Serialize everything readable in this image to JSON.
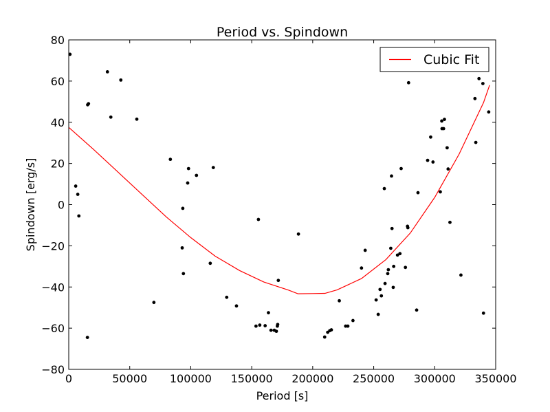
{
  "chart_data": {
    "type": "scatter",
    "title": "Period vs. Spindown",
    "xlabel": "Period [s]",
    "ylabel": "Spindown [erg/s]",
    "xlim": [
      0,
      350000
    ],
    "ylim": [
      -80,
      80
    ],
    "xticks": [
      0,
      50000,
      100000,
      150000,
      200000,
      250000,
      300000,
      350000
    ],
    "yticks": [
      -80,
      -60,
      -40,
      -20,
      0,
      20,
      40,
      60,
      80
    ],
    "xtick_labels": [
      "0",
      "50000",
      "100000",
      "150000",
      "200000",
      "250000",
      "300000",
      "350000"
    ],
    "ytick_labels": [
      "−80",
      "−60",
      "−40",
      "−20",
      "0",
      "20",
      "40",
      "60",
      "80"
    ],
    "legend": {
      "position": "top-right",
      "entries": [
        "Cubic Fit"
      ]
    },
    "colors": {
      "points": "#000000",
      "fit": "#ff0000"
    },
    "series": [
      {
        "kind": "points",
        "x": [
          1000,
          5700,
          7400,
          8300,
          15300,
          15500,
          16200,
          31700,
          34500,
          42700,
          55800,
          69800,
          83300,
          93000,
          93500,
          94000,
          97500,
          98200,
          104700,
          116000,
          118500,
          129500,
          137500,
          153500,
          155500,
          156600,
          161000,
          163700,
          165800,
          168500,
          170200,
          171000,
          171300,
          171800,
          188300,
          209800,
          212300,
          214000,
          215300,
          221800,
          227000,
          228800,
          233000,
          240000,
          243000,
          252000,
          253700,
          255200,
          256300,
          258700,
          259300,
          261500,
          262000,
          264000,
          264600,
          265000,
          266000,
          266400,
          269500,
          271500,
          272500,
          276000,
          277700,
          278000,
          278600,
          285200,
          286300,
          294200,
          296700,
          298600,
          304600,
          305800,
          306000,
          307300,
          308000,
          310200,
          311000,
          312500,
          321500,
          333000,
          333700,
          336300,
          339500,
          340000,
          344300
        ],
        "y": [
          73,
          9,
          5,
          -5.5,
          -64.5,
          48.5,
          49,
          64.5,
          42.5,
          60.5,
          41.5,
          -47.5,
          22,
          -21,
          -1.8,
          -33.5,
          10.5,
          17.5,
          14.2,
          -28.5,
          18,
          -45,
          -49.2,
          -59,
          -7.2,
          -58.5,
          -58.8,
          -52.5,
          -61,
          -61,
          -61.5,
          -59,
          -58.2,
          -36.8,
          -14.3,
          -64.3,
          -62,
          -61.2,
          -60.8,
          -46.7,
          -59,
          -59,
          -56.3,
          -30.8,
          -22.2,
          -46.3,
          -53.3,
          -41.2,
          -44.3,
          7.8,
          -38.3,
          -33.5,
          -31.6,
          -21.2,
          13.9,
          -11.6,
          -40.2,
          -30,
          -24.5,
          -23.8,
          17.5,
          -30.5,
          -10.5,
          -11.2,
          59.2,
          -51.2,
          5.8,
          21.5,
          32.8,
          20.7,
          6.2,
          40.6,
          36.9,
          36.9,
          41.4,
          27.6,
          17.3,
          -8.6,
          -34.2,
          51.5,
          30.2,
          61.2,
          58.8,
          -52.7,
          45
        ]
      },
      {
        "kind": "line",
        "name": "Cubic Fit",
        "x": [
          0,
          20000,
          40000,
          60000,
          80000,
          100000,
          120000,
          140000,
          160000,
          180000,
          188000,
          200000,
          210000,
          220000,
          240000,
          260000,
          280000,
          300000,
          320000,
          340000,
          345000
        ],
        "y": [
          37.5,
          27,
          16,
          5,
          -6,
          -16,
          -25,
          -32,
          -37.6,
          -41.5,
          -43.3,
          -43.2,
          -43.1,
          -41.4,
          -35.9,
          -26.7,
          -13.8,
          3.5,
          24.5,
          49.5,
          58
        ]
      }
    ]
  }
}
